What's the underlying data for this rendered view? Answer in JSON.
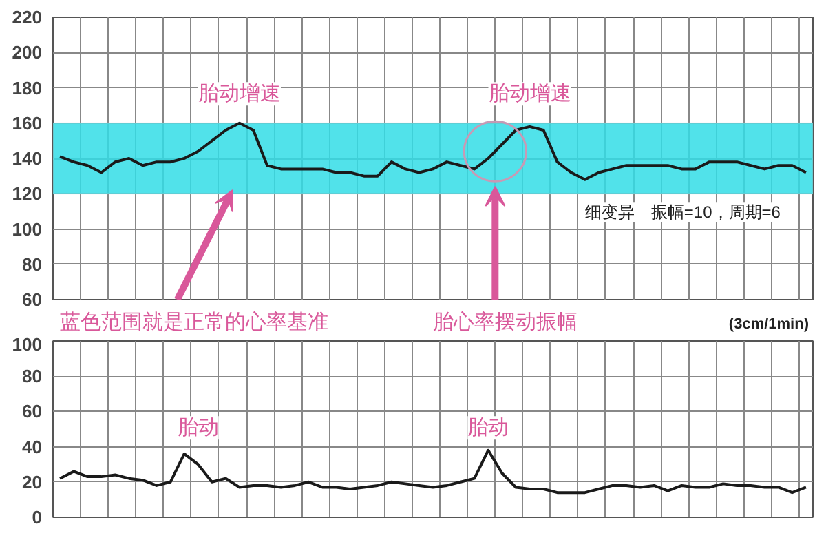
{
  "chart_data": [
    {
      "type": "line",
      "categories": [
        null,
        null,
        null,
        null,
        null,
        null,
        null,
        null,
        null,
        null,
        null,
        null,
        null,
        null,
        null,
        null,
        null,
        null,
        null,
        null,
        null,
        null,
        null,
        null,
        null,
        null,
        null,
        null,
        null,
        null,
        null,
        null,
        null,
        null,
        null,
        null,
        null,
        null,
        null,
        null,
        null,
        null,
        null,
        null,
        null,
        null,
        null,
        null,
        null,
        null,
        null,
        null,
        null,
        null,
        null
      ],
      "series": [
        {
          "color": "#1a1a1a",
          "values": [
            141,
            138,
            136,
            132,
            138,
            140,
            136,
            138,
            138,
            140,
            144,
            150,
            156,
            160,
            156,
            136,
            134,
            134,
            134,
            134,
            132,
            132,
            130,
            130,
            138,
            134,
            132,
            134,
            138,
            136,
            134,
            140,
            148,
            156,
            158,
            156,
            138,
            132,
            128,
            132,
            134,
            136,
            136,
            136,
            136,
            134,
            134,
            138,
            138,
            138,
            136,
            134,
            136,
            136,
            132
          ]
        }
      ],
      "ylim": [
        60,
        220
      ],
      "yticks": [
        60,
        80,
        100,
        120,
        140,
        160,
        180,
        200,
        220
      ],
      "grid": true,
      "tick_labels": "y",
      "bands": [
        {
          "axis": "y",
          "from": 120,
          "to": 160,
          "color": "#33dde6"
        }
      ],
      "annotations": [
        "胎动增速",
        "胎动增速",
        "细变异　振幅=10，周期=6",
        "蓝色范围就是正常的心率基准",
        "胎心率摆动振幅",
        "(3cm/1min)"
      ]
    },
    {
      "type": "line",
      "categories": [
        null,
        null,
        null,
        null,
        null,
        null,
        null,
        null,
        null,
        null,
        null,
        null,
        null,
        null,
        null,
        null,
        null,
        null,
        null,
        null,
        null,
        null,
        null,
        null,
        null,
        null,
        null,
        null,
        null,
        null,
        null,
        null,
        null,
        null,
        null,
        null,
        null,
        null,
        null,
        null,
        null,
        null,
        null,
        null,
        null,
        null,
        null,
        null,
        null,
        null,
        null,
        null,
        null,
        null,
        null
      ],
      "series": [
        {
          "color": "#1a1a1a",
          "values": [
            22,
            26,
            23,
            23,
            24,
            22,
            21,
            18,
            20,
            36,
            30,
            20,
            22,
            17,
            18,
            18,
            17,
            18,
            20,
            17,
            17,
            16,
            17,
            18,
            20,
            19,
            18,
            17,
            18,
            20,
            22,
            38,
            25,
            17,
            16,
            16,
            14,
            14,
            14,
            16,
            18,
            18,
            17,
            18,
            15,
            18,
            17,
            17,
            19,
            18,
            18,
            17,
            17,
            14,
            17
          ]
        }
      ],
      "ylim": [
        0,
        100
      ],
      "yticks": [
        0,
        20,
        40,
        60,
        80,
        100
      ],
      "grid": true,
      "tick_labels": "y",
      "annotations": [
        "胎动",
        "胎动"
      ]
    }
  ]
}
